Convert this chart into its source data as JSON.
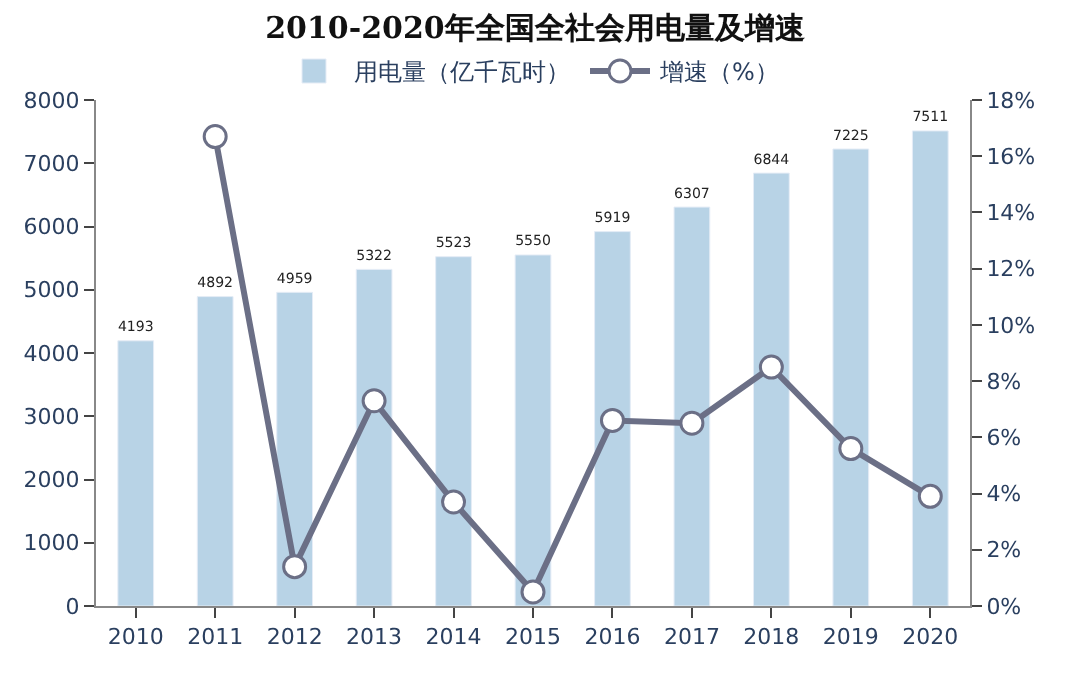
{
  "chart_data": {
    "type": "bar",
    "title": "2010-2020年全国全社会用电量及增速",
    "categories": [
      "2010",
      "2011",
      "2012",
      "2013",
      "2014",
      "2015",
      "2016",
      "2017",
      "2018",
      "2019",
      "2020"
    ],
    "series": [
      {
        "name": "用电量（亿千瓦时）",
        "color": "#b8d3e6",
        "values": [
          4193,
          4892,
          4959,
          5322,
          5523,
          5550,
          5919,
          6307,
          6844,
          7225,
          7511
        ],
        "value_labels": [
          "4193",
          "4892",
          "4959",
          "5322",
          "5523",
          "5550",
          "5919",
          "6307",
          "6844",
          "7225",
          "7511"
        ]
      },
      {
        "name": "增速（%）",
        "type": "line",
        "axis": "y2",
        "color": "#6b6f86",
        "marker": "circle",
        "values": [
          null,
          16.7,
          1.4,
          7.3,
          3.7,
          0.5,
          6.6,
          6.5,
          8.5,
          5.6,
          3.9
        ]
      }
    ],
    "ylim": [
      0,
      8000
    ],
    "yticks": [
      0,
      1000,
      2000,
      3000,
      4000,
      5000,
      6000,
      7000,
      8000
    ],
    "y2lim": [
      0,
      18
    ],
    "y2ticks": [
      {
        "value": 0,
        "label": "0%"
      },
      {
        "value": 2,
        "label": "2%"
      },
      {
        "value": 4,
        "label": "4%"
      },
      {
        "value": 6,
        "label": "6%"
      },
      {
        "value": 8,
        "label": "8%"
      },
      {
        "value": 10,
        "label": "10%"
      },
      {
        "value": 12,
        "label": "12%"
      },
      {
        "value": 14,
        "label": "14%"
      },
      {
        "value": 16,
        "label": "16%"
      },
      {
        "value": 18,
        "label": "18%"
      }
    ],
    "legend": "top"
  }
}
